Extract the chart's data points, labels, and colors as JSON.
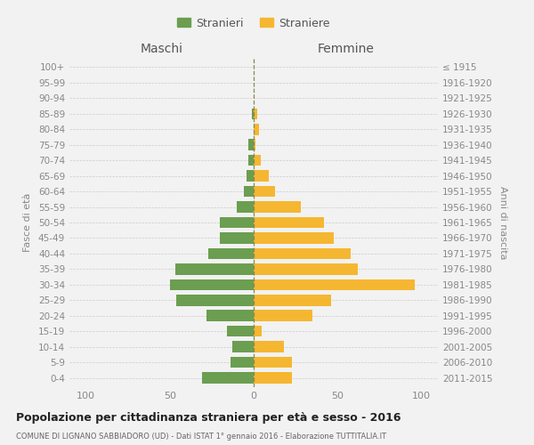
{
  "age_groups": [
    "100+",
    "95-99",
    "90-94",
    "85-89",
    "80-84",
    "75-79",
    "70-74",
    "65-69",
    "60-64",
    "55-59",
    "50-54",
    "45-49",
    "40-44",
    "35-39",
    "30-34",
    "25-29",
    "20-24",
    "15-19",
    "10-14",
    "5-9",
    "0-4"
  ],
  "birth_years": [
    "≤ 1915",
    "1916-1920",
    "1921-1925",
    "1926-1930",
    "1931-1935",
    "1936-1940",
    "1941-1945",
    "1946-1950",
    "1951-1955",
    "1956-1960",
    "1961-1965",
    "1966-1970",
    "1971-1975",
    "1976-1980",
    "1981-1985",
    "1986-1990",
    "1991-1995",
    "1996-2000",
    "2001-2005",
    "2006-2010",
    "2011-2015"
  ],
  "maschi": [
    0,
    0,
    0,
    1,
    0,
    3,
    3,
    4,
    6,
    10,
    20,
    20,
    27,
    47,
    50,
    46,
    28,
    16,
    13,
    14,
    31
  ],
  "femmine": [
    0,
    0,
    0,
    2,
    3,
    1,
    4,
    9,
    13,
    28,
    42,
    48,
    58,
    62,
    96,
    46,
    35,
    5,
    18,
    23,
    23
  ],
  "male_color": "#6b9e50",
  "female_color": "#f5b731",
  "background_color": "#f2f2f2",
  "title": "Popolazione per cittadinanza straniera per età e sesso - 2016",
  "subtitle": "COMUNE DI LIGNANO SABBIADORO (UD) - Dati ISTAT 1° gennaio 2016 - Elaborazione TUTTITALIA.IT",
  "xlabel_left": "Maschi",
  "xlabel_right": "Femmine",
  "ylabel_left": "Fasce di età",
  "ylabel_right": "Anni di nascita",
  "xlim": 110,
  "legend_stranieri": "Stranieri",
  "legend_straniere": "Straniere"
}
